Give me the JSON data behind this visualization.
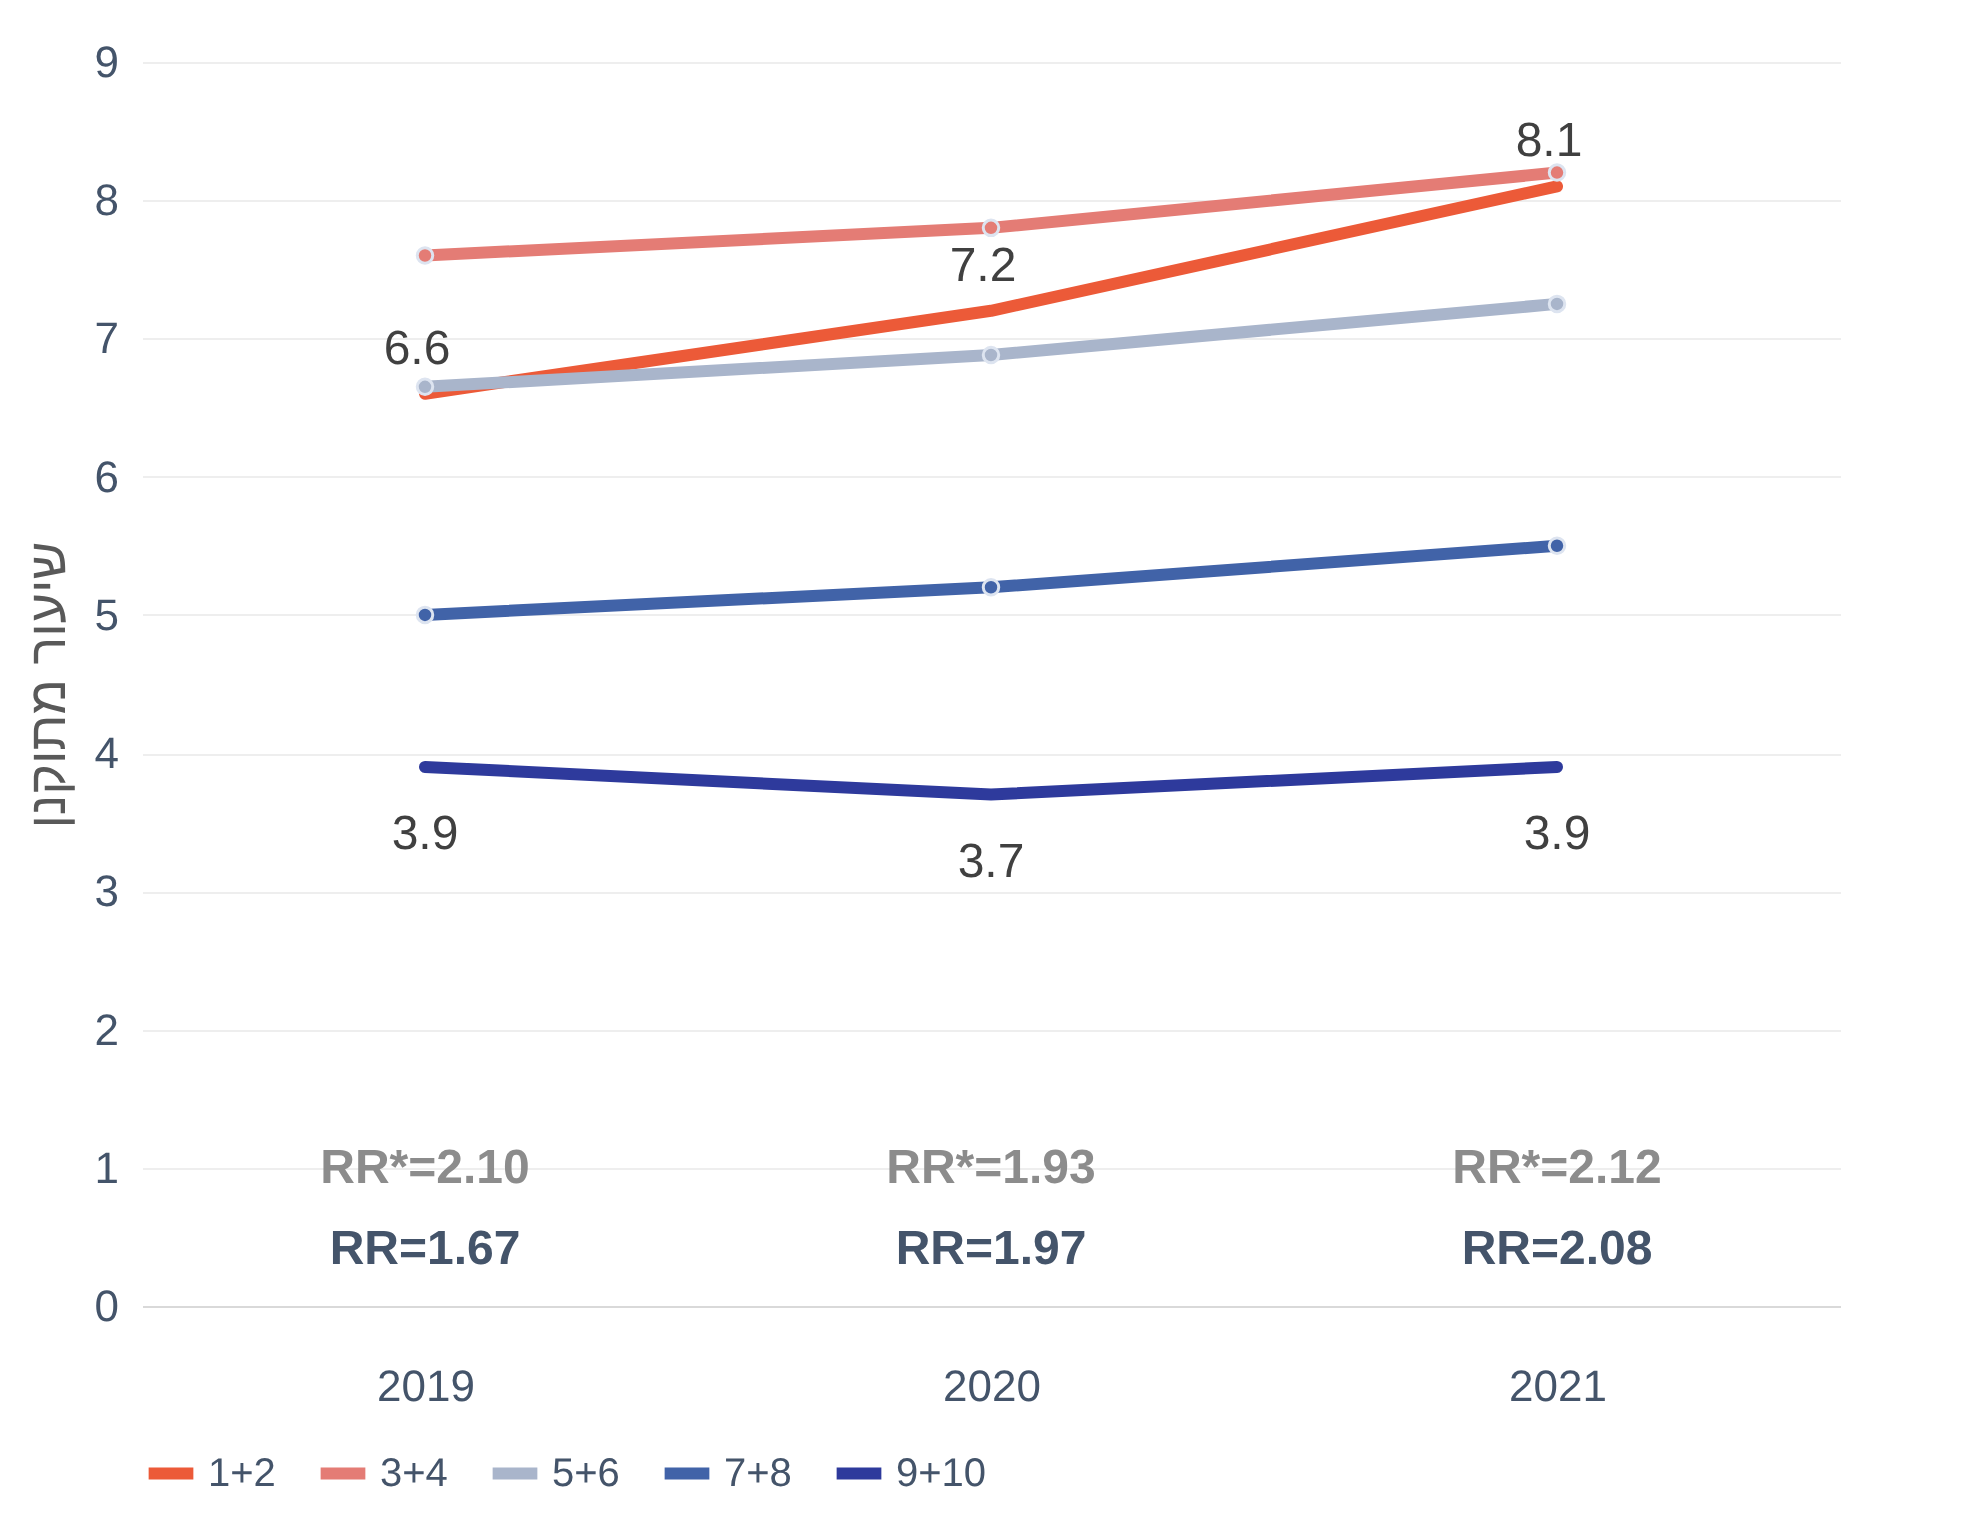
{
  "chart_data": {
    "type": "line",
    "ylabel": "שיעור מתוקנן",
    "categories": [
      "2019",
      "2020",
      "2021"
    ],
    "series": [
      {
        "name": "1+2",
        "color": "#ec5a38",
        "values": [
          6.6,
          7.2,
          8.1
        ],
        "marker": "none",
        "value_labels": [
          "6.6",
          "7.2",
          "8.1"
        ]
      },
      {
        "name": "3+4",
        "color": "#e47c75",
        "values": [
          7.6,
          7.8,
          8.2
        ],
        "marker": "circle"
      },
      {
        "name": "5+6",
        "color": "#a9b5cb",
        "values": [
          6.65,
          6.88,
          7.25
        ],
        "marker": "circle"
      },
      {
        "name": "7+8",
        "color": "#4163a8",
        "values": [
          5.0,
          5.2,
          5.5
        ],
        "marker": "circle"
      },
      {
        "name": "9+10",
        "color": "#2e3a9c",
        "values": [
          3.9,
          3.7,
          3.9
        ],
        "marker": "none",
        "value_labels": [
          "3.9",
          "3.7",
          "3.9"
        ]
      }
    ],
    "ylim": [
      0,
      9
    ],
    "yticks": [
      0,
      1,
      2,
      3,
      4,
      5,
      6,
      7,
      8,
      9
    ],
    "grid": "y",
    "legend": "bottom",
    "annotations": [
      "RR*=2.10",
      "RR=1.67",
      "RR*=1.93",
      "RR=1.97",
      "RR*=2.12",
      "RR=2.08"
    ]
  }
}
